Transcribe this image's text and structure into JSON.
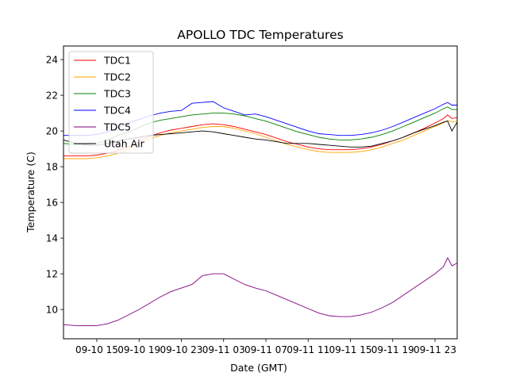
{
  "chart_data": {
    "type": "line",
    "title": "APOLLO TDC Temperatures",
    "xlabel": "Date (GMT)",
    "ylabel": "Temperature (C)",
    "x_unit": "hours since 09-10 00:00 GMT",
    "xlim": [
      11.85,
      49.1
    ],
    "ylim": [
      8.36,
      24.76
    ],
    "grid": false,
    "legend_position": "upper-left",
    "x_ticks": [
      {
        "value": 15,
        "label": "09-10 15"
      },
      {
        "value": 19,
        "label": "09-10 19"
      },
      {
        "value": 23,
        "label": "09-10 23"
      },
      {
        "value": 27,
        "label": "09-11 03"
      },
      {
        "value": 31,
        "label": "09-11 07"
      },
      {
        "value": 35,
        "label": "09-11 11"
      },
      {
        "value": 39,
        "label": "09-11 15"
      },
      {
        "value": 43,
        "label": "09-11 19"
      },
      {
        "value": 47,
        "label": "09-11 23"
      }
    ],
    "y_ticks": [
      {
        "value": 10,
        "label": "10"
      },
      {
        "value": 12,
        "label": "12"
      },
      {
        "value": 14,
        "label": "14"
      },
      {
        "value": 16,
        "label": "16"
      },
      {
        "value": 18,
        "label": "18"
      },
      {
        "value": 20,
        "label": "20"
      },
      {
        "value": 22,
        "label": "22"
      },
      {
        "value": 24,
        "label": "24"
      }
    ],
    "x": [
      11.85,
      13,
      14,
      15,
      16,
      17,
      18,
      19,
      20,
      21,
      22,
      23,
      24,
      25,
      26,
      27,
      28,
      29,
      30,
      31,
      32,
      33,
      34,
      35,
      36,
      37,
      38,
      39,
      40,
      41,
      42,
      43,
      44,
      45,
      46,
      47,
      47.8,
      48.2,
      48.6,
      49.1
    ],
    "series": [
      {
        "name": "TDC1",
        "color": "#ff0000",
        "values": [
          18.6,
          18.6,
          18.6,
          18.65,
          18.75,
          18.9,
          19.1,
          19.4,
          19.7,
          19.9,
          20.05,
          20.15,
          20.25,
          20.35,
          20.4,
          20.35,
          20.25,
          20.1,
          19.95,
          19.8,
          19.6,
          19.4,
          19.25,
          19.1,
          19.0,
          18.95,
          18.95,
          18.95,
          19.0,
          19.1,
          19.25,
          19.45,
          19.65,
          19.9,
          20.15,
          20.45,
          20.7,
          20.9,
          20.7,
          20.75
        ]
      },
      {
        "name": "TDC2",
        "color": "#ffa500",
        "values": [
          18.45,
          18.45,
          18.45,
          18.5,
          18.6,
          18.75,
          18.95,
          19.25,
          19.55,
          19.75,
          19.9,
          20.0,
          20.1,
          20.2,
          20.25,
          20.25,
          20.15,
          20.0,
          19.85,
          19.65,
          19.45,
          19.25,
          19.1,
          18.95,
          18.85,
          18.8,
          18.8,
          18.8,
          18.85,
          18.95,
          19.1,
          19.3,
          19.5,
          19.75,
          20.0,
          20.25,
          20.45,
          20.6,
          20.5,
          20.55
        ]
      },
      {
        "name": "TDC3",
        "color": "#008000",
        "values": [
          19.3,
          19.25,
          19.25,
          19.3,
          19.5,
          19.75,
          19.95,
          20.2,
          20.45,
          20.6,
          20.7,
          20.8,
          20.9,
          20.95,
          21.0,
          21.0,
          20.95,
          20.85,
          20.7,
          20.55,
          20.35,
          20.15,
          19.95,
          19.8,
          19.65,
          19.55,
          19.5,
          19.5,
          19.55,
          19.65,
          19.8,
          20.0,
          20.25,
          20.5,
          20.75,
          21.0,
          21.25,
          21.35,
          21.2,
          21.2
        ]
      },
      {
        "name": "TDC4",
        "color": "#0000ff",
        "values": [
          19.75,
          19.75,
          19.75,
          19.8,
          19.95,
          20.2,
          20.45,
          20.65,
          20.85,
          21.0,
          21.1,
          21.15,
          21.55,
          21.6,
          21.65,
          21.3,
          21.1,
          20.9,
          20.95,
          20.8,
          20.6,
          20.4,
          20.2,
          20.0,
          19.85,
          19.8,
          19.75,
          19.75,
          19.8,
          19.9,
          20.05,
          20.25,
          20.5,
          20.75,
          21.0,
          21.25,
          21.5,
          21.6,
          21.45,
          21.45
        ]
      },
      {
        "name": "TDC5",
        "color": "#800080",
        "values": [
          9.15,
          9.1,
          9.1,
          9.1,
          9.2,
          9.4,
          9.7,
          10.0,
          10.35,
          10.7,
          11.0,
          11.2,
          11.4,
          11.9,
          12.0,
          12.0,
          11.7,
          11.4,
          11.2,
          11.05,
          10.8,
          10.55,
          10.3,
          10.05,
          9.8,
          9.65,
          9.6,
          9.6,
          9.7,
          9.85,
          10.1,
          10.4,
          10.8,
          11.2,
          11.6,
          12.0,
          12.4,
          12.9,
          12.45,
          12.6
        ]
      },
      {
        "name": "Utah Air",
        "color": "#000000",
        "values": [
          19.5,
          19.3,
          19.2,
          19.2,
          19.3,
          19.45,
          19.55,
          19.65,
          19.75,
          19.8,
          19.85,
          19.9,
          19.95,
          20.0,
          19.95,
          19.85,
          19.75,
          19.65,
          19.55,
          19.5,
          19.4,
          19.3,
          19.3,
          19.3,
          19.25,
          19.2,
          19.15,
          19.1,
          19.1,
          19.15,
          19.3,
          19.45,
          19.65,
          19.9,
          20.1,
          20.3,
          20.5,
          20.55,
          20.0,
          20.5
        ]
      }
    ]
  }
}
